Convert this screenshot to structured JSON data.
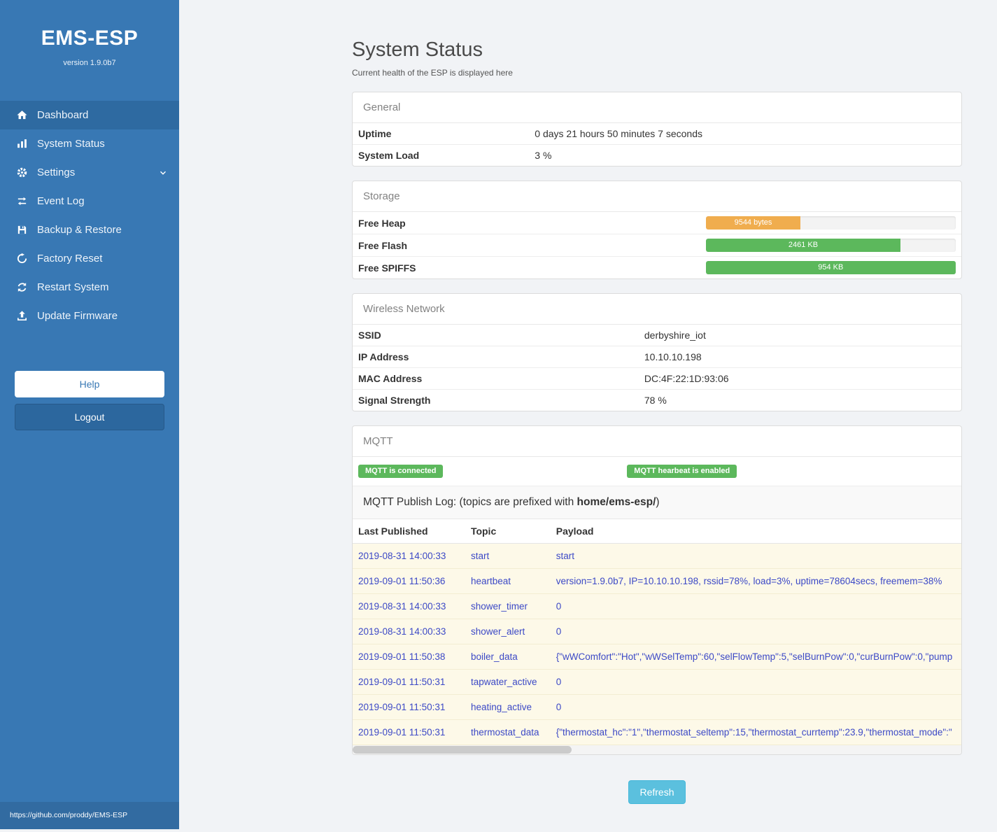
{
  "sidebar": {
    "title": "EMS-ESP",
    "version": "version 1.9.0b7",
    "nav": [
      {
        "label": "Dashboard"
      },
      {
        "label": "System Status"
      },
      {
        "label": "Settings"
      },
      {
        "label": "Event Log"
      },
      {
        "label": "Backup & Restore"
      },
      {
        "label": "Factory Reset"
      },
      {
        "label": "Restart System"
      },
      {
        "label": "Update Firmware"
      }
    ],
    "help_label": "Help",
    "logout_label": "Logout",
    "footer_link": "https://github.com/proddy/EMS-ESP"
  },
  "page": {
    "title": "System Status",
    "subtitle": "Current health of the ESP is displayed here",
    "refresh_label": "Refresh"
  },
  "general": {
    "header": "General",
    "rows": [
      {
        "label": "Uptime",
        "value": "0 days 21 hours 50 minutes 7 seconds"
      },
      {
        "label": "System Load",
        "value": "3 %"
      }
    ]
  },
  "storage": {
    "header": "Storage",
    "rows": [
      {
        "label": "Free Heap",
        "value": "9544 bytes",
        "percent": 38,
        "color": "#f0ad4e"
      },
      {
        "label": "Free Flash",
        "value": "2461 KB",
        "percent": 78,
        "color": "#5cb85c"
      },
      {
        "label": "Free SPIFFS",
        "value": "954 KB",
        "percent": 100,
        "color": "#5cb85c"
      }
    ]
  },
  "wireless": {
    "header": "Wireless Network",
    "rows": [
      {
        "label": "SSID",
        "value": "derbyshire_iot"
      },
      {
        "label": "IP Address",
        "value": "10.10.10.198"
      },
      {
        "label": "MAC Address",
        "value": "DC:4F:22:1D:93:06"
      },
      {
        "label": "Signal Strength",
        "value": "78 %"
      }
    ]
  },
  "mqtt": {
    "header": "MQTT",
    "badges": [
      "MQTT is connected",
      "MQTT hearbeat is enabled"
    ],
    "log_title_prefix": "MQTT Publish Log: (topics are prefixed with ",
    "log_title_bold": "home/ems-esp/",
    "log_title_suffix": ")",
    "columns": [
      "Last Published",
      "Topic",
      "Payload"
    ],
    "rows": [
      [
        "2019-08-31 14:00:33",
        "start",
        "start"
      ],
      [
        "2019-09-01 11:50:36",
        "heartbeat",
        "version=1.9.0b7, IP=10.10.10.198, rssid=78%, load=3%, uptime=78604secs, freemem=38%"
      ],
      [
        "2019-08-31 14:00:33",
        "shower_timer",
        "0"
      ],
      [
        "2019-08-31 14:00:33",
        "shower_alert",
        "0"
      ],
      [
        "2019-09-01 11:50:38",
        "boiler_data",
        "{\"wWComfort\":\"Hot\",\"wWSelTemp\":60,\"selFlowTemp\":5,\"selBurnPow\":0,\"curBurnPow\":0,\"pump"
      ],
      [
        "2019-09-01 11:50:31",
        "tapwater_active",
        "0"
      ],
      [
        "2019-09-01 11:50:31",
        "heating_active",
        "0"
      ],
      [
        "2019-09-01 11:50:31",
        "thermostat_data",
        "{\"thermostat_hc\":\"1\",\"thermostat_seltemp\":15,\"thermostat_currtemp\":23.9,\"thermostat_mode\":\""
      ]
    ]
  }
}
